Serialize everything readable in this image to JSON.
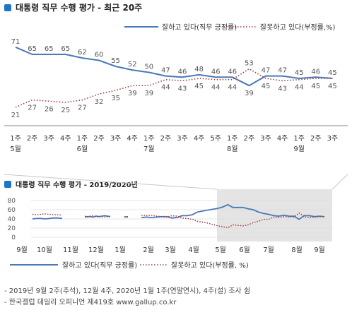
{
  "top_title": "대통령 직무 수행 평가 - 최근 20주",
  "bottom_title": "대통령 직무 수행 평가 - 2019/2020년",
  "legend": {
    "approve": "잘하고 있다(직무 긍정률)",
    "disapprove": "잘못하고 있다(부정률, %)"
  },
  "footnotes": [
    "- 2019년 9월 2주(추석), 12월 4주, 2020년 1월 1주(연말연시), 4주(설) 조사 쉼",
    "- 한국갤럽 데일리 오피니언 제419호 www.gallup.co.kr"
  ],
  "colors": {
    "approve": "#4a78b8",
    "disapprove": "#a0413c",
    "highlight": "#e4e4e4",
    "title_icon": "#1e74c8"
  },
  "chart_data": [
    {
      "type": "line",
      "title": "대통령 직무 수행 평가 - 최근 20주",
      "x": [
        "1주 5월",
        "2주",
        "3주",
        "4주",
        "1주 6월",
        "2주",
        "3주",
        "4주",
        "1주 7월",
        "2주",
        "3주",
        "4주",
        "5주",
        "1주 8월",
        "2주",
        "3주",
        "4주",
        "1주 9월",
        "2주",
        "3주"
      ],
      "x_labels": [
        [
          "1주",
          "5월"
        ],
        [
          "2주",
          ""
        ],
        [
          "3주",
          ""
        ],
        [
          "4주",
          ""
        ],
        [
          "1주",
          "6월"
        ],
        [
          "2주",
          ""
        ],
        [
          "3주",
          ""
        ],
        [
          "4주",
          ""
        ],
        [
          "1주",
          "7월"
        ],
        [
          "2주",
          ""
        ],
        [
          "3주",
          ""
        ],
        [
          "4주",
          ""
        ],
        [
          "5주",
          ""
        ],
        [
          "1주",
          "8월"
        ],
        [
          "2주",
          ""
        ],
        [
          "3주",
          ""
        ],
        [
          "4주",
          ""
        ],
        [
          "1주",
          "9월"
        ],
        [
          "2주",
          ""
        ],
        [
          "3주",
          ""
        ]
      ],
      "series": [
        {
          "name": "잘하고 있다(직무 긍정률)",
          "style": "solid",
          "values": [
            71,
            65,
            65,
            65,
            62,
            60,
            55,
            52,
            50,
            47,
            46,
            48,
            46,
            46,
            39,
            47,
            47,
            45,
            46,
            45
          ]
        },
        {
          "name": "잘못하고 있다(부정률,%)",
          "style": "dotted",
          "values": [
            21,
            27,
            26,
            25,
            27,
            32,
            35,
            39,
            39,
            44,
            43,
            45,
            44,
            44,
            53,
            45,
            43,
            44,
            45,
            45
          ]
        }
      ],
      "ylim": [
        15,
        75
      ],
      "legend": "top-right"
    },
    {
      "type": "line",
      "title": "대통령 직무 수행 평가 - 2019/2020년",
      "x_tick_labels": [
        "9월",
        "10월",
        "11월",
        "12월",
        "1월",
        "2월",
        "3월",
        "4월",
        "5월",
        "6월",
        "7월",
        "8월",
        "9월"
      ],
      "y_ticks": [
        0,
        20,
        40,
        60,
        80
      ],
      "ylim": [
        0,
        80
      ],
      "grid": true,
      "highlight_region": "최근 20주",
      "series": [
        {
          "name": "잘하고 있다(직무 긍정률)",
          "style": "solid",
          "segments": [
            [
              40,
              41,
              41,
              40,
              41,
              42,
              42,
              41
            ],
            [
              44,
              45,
              45,
              44,
              46,
              45,
              46,
              47,
              46,
              45
            ],
            [
              44,
              45
            ],
            [
              43,
              44,
              43,
              44,
              45,
              45,
              42,
              43,
              47,
              47,
              49,
              55,
              57,
              59,
              61,
              63,
              66,
              71,
              65,
              65,
              65,
              62,
              60,
              55,
              52,
              50,
              47,
              46,
              48,
              46,
              46,
              39,
              47,
              47,
              45,
              46,
              45
            ]
          ]
        },
        {
          "name": "잘못하고 있다(부정률, %)",
          "style": "dotted",
          "segments": [
            [
              50,
              49,
              50,
              51,
              50,
              49,
              49,
              48
            ],
            [
              46,
              45,
              46,
              47,
              45,
              46,
              45,
              44,
              45,
              46
            ],
            [
              45,
              44
            ],
            [
              48,
              47,
              48,
              46,
              45,
              44,
              47,
              46,
              42,
              41,
              39,
              35,
              33,
              31,
              28,
              25,
              23,
              21,
              27,
              26,
              25,
              27,
              32,
              35,
              39,
              39,
              44,
              43,
              45,
              44,
              44,
              53,
              45,
              43,
              44,
              45,
              45
            ]
          ]
        }
      ]
    }
  ]
}
